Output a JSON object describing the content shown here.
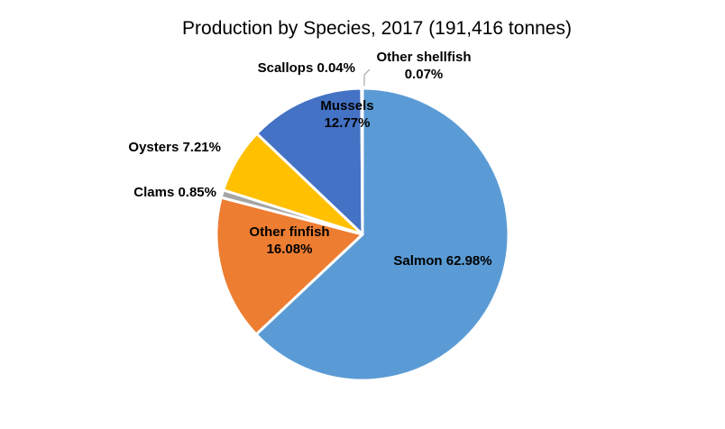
{
  "chart_data": {
    "type": "pie",
    "title": "Production by Species, 2017 (191,416 tonnes)",
    "series": [
      {
        "name": "Salmon",
        "value": 62.98,
        "color": "#5b9bd5"
      },
      {
        "name": "Other finfish",
        "value": 16.08,
        "color": "#ed7d31"
      },
      {
        "name": "Clams",
        "value": 0.85,
        "color": "#a5a5a5"
      },
      {
        "name": "Oysters",
        "value": 7.21,
        "color": "#ffc000"
      },
      {
        "name": "Mussels",
        "value": 12.77,
        "color": "#4472c4"
      },
      {
        "name": "Scallops",
        "value": 0.04,
        "color": "#70ad47"
      },
      {
        "name": "Other shellfish",
        "value": 0.07,
        "color": "#264478"
      }
    ],
    "data_labels": [
      {
        "line1": "Salmon  62.98%"
      },
      {
        "line1": "Other finfish",
        "line2": "16.08%"
      },
      {
        "line1": "Clams 0.85%"
      },
      {
        "line1": "Oysters 7.21%"
      },
      {
        "line1": "Mussels",
        "line2": "12.77%"
      },
      {
        "line1": "Scallops 0.04%"
      },
      {
        "line1": "Other shellfish",
        "line2": "0.07%"
      }
    ]
  }
}
